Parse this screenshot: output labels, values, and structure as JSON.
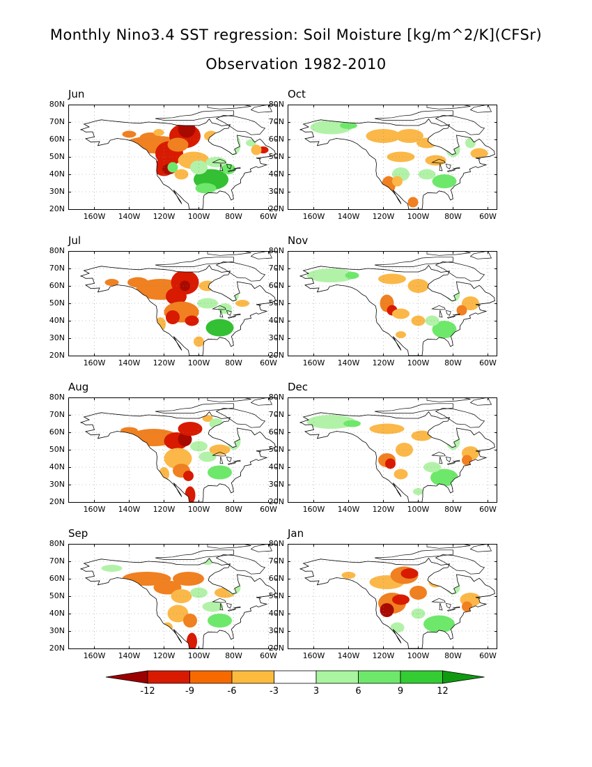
{
  "title": "Monthly Nino3.4 SST regression: Soil Moisture [kg/m^2/K](CFSr)",
  "subtitle": "Observation 1982-2010",
  "lat_labels": [
    "80N",
    "70N",
    "60N",
    "50N",
    "40N",
    "30N",
    "20N"
  ],
  "lon_labels": [
    "160W",
    "140W",
    "120W",
    "100W",
    "80W",
    "60W"
  ],
  "panels": [
    {
      "month": "Jun",
      "col": 0,
      "row": 0
    },
    {
      "month": "Oct",
      "col": 1,
      "row": 0
    },
    {
      "month": "Jul",
      "col": 0,
      "row": 1
    },
    {
      "month": "Nov",
      "col": 1,
      "row": 1
    },
    {
      "month": "Aug",
      "col": 0,
      "row": 2
    },
    {
      "month": "Dec",
      "col": 1,
      "row": 2
    },
    {
      "month": "Sep",
      "col": 0,
      "row": 3
    },
    {
      "month": "Jan",
      "col": 1,
      "row": 3
    }
  ],
  "colorbar": {
    "labels": [
      "-12",
      "-9",
      "-6",
      "-3",
      "3",
      "6",
      "9",
      "12"
    ],
    "colors": [
      "#9c0000",
      "#d81a00",
      "#f76a00",
      "#fdbb3e",
      "#ffffff",
      "#a9f5a0",
      "#6ee86a",
      "#33cc33",
      "#109a10"
    ]
  },
  "colors": {
    "dark_red": "#a90a00",
    "red": "#d81a00",
    "orange": "#f08020",
    "light_orange": "#fbb848",
    "light_green": "#b2f2a8",
    "green": "#6ee86a",
    "dark_green": "#33c033"
  }
}
